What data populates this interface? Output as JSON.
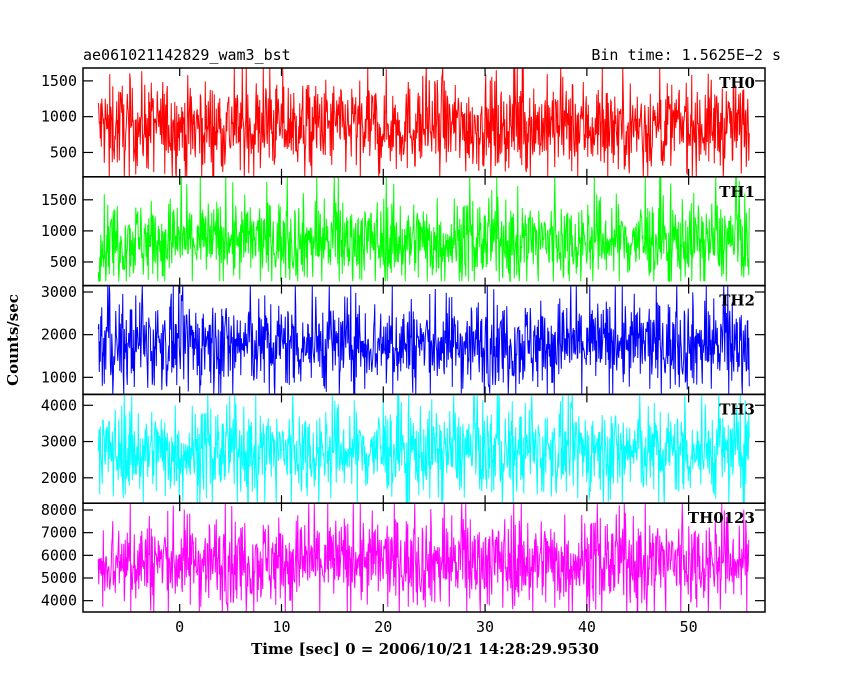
{
  "header": {
    "title": "ae061021142829_wam3_bst",
    "bin_time": "Bin time: 1.5625E−2 s"
  },
  "chart_data": {
    "type": "line",
    "title": "ae061021142829_wam3_bst",
    "xlabel": "Time [sec] 0 = 2006/10/21 14:28:29.9530",
    "ylabel": "Counts/sec",
    "xlim": [
      -9.5,
      57.5
    ],
    "x_ticks": [
      0,
      10,
      20,
      30,
      40,
      50
    ],
    "x_tick_labels": [
      "0",
      "10",
      "20",
      "30",
      "40",
      "50"
    ],
    "data_x_range": [
      -8,
      56
    ],
    "bin_time_s": 0.015625,
    "panels": [
      {
        "name": "TH0",
        "color": "#ff0000",
        "ylim": [
          160,
          1680
        ],
        "y_ticks": [
          500,
          1000,
          1500
        ],
        "y_tick_labels": [
          "500",
          "1000",
          "1500"
        ],
        "mean": 870,
        "band": [
          160,
          1680
        ],
        "typical_range": [
          260,
          1520
        ]
      },
      {
        "name": "TH1",
        "color": "#00ff00",
        "ylim": [
          120,
          1870
        ],
        "y_ticks": [
          500,
          1000,
          1500
        ],
        "y_tick_labels": [
          "500",
          "1000",
          "1500"
        ],
        "mean": 850,
        "band": [
          190,
          1870
        ],
        "typical_range": [
          280,
          1600
        ]
      },
      {
        "name": "TH2",
        "color": "#0000ff",
        "ylim": [
          600,
          3150
        ],
        "y_ticks": [
          1000,
          2000,
          3000
        ],
        "y_tick_labels": [
          "1000",
          "2000",
          "3000"
        ],
        "mean": 1790,
        "band": [
          600,
          3150
        ],
        "typical_range": [
          800,
          2900
        ]
      },
      {
        "name": "TH3",
        "color": "#00ffff",
        "ylim": [
          1300,
          4300
        ],
        "y_ticks": [
          2000,
          3000,
          4000
        ],
        "y_tick_labels": [
          "2000",
          "3000",
          "4000"
        ],
        "mean": 2750,
        "band": [
          1300,
          4300
        ],
        "typical_range": [
          1600,
          4050
        ]
      },
      {
        "name": "TH0123",
        "color": "#ff00ff",
        "ylim": [
          3500,
          8300
        ],
        "y_ticks": [
          4000,
          5000,
          6000,
          7000,
          8000
        ],
        "y_tick_labels": [
          "4000",
          "5000",
          "6000",
          "7000",
          "8000"
        ],
        "mean": 5750,
        "band": [
          3500,
          8300
        ],
        "typical_range": [
          3900,
          7900
        ]
      }
    ]
  }
}
